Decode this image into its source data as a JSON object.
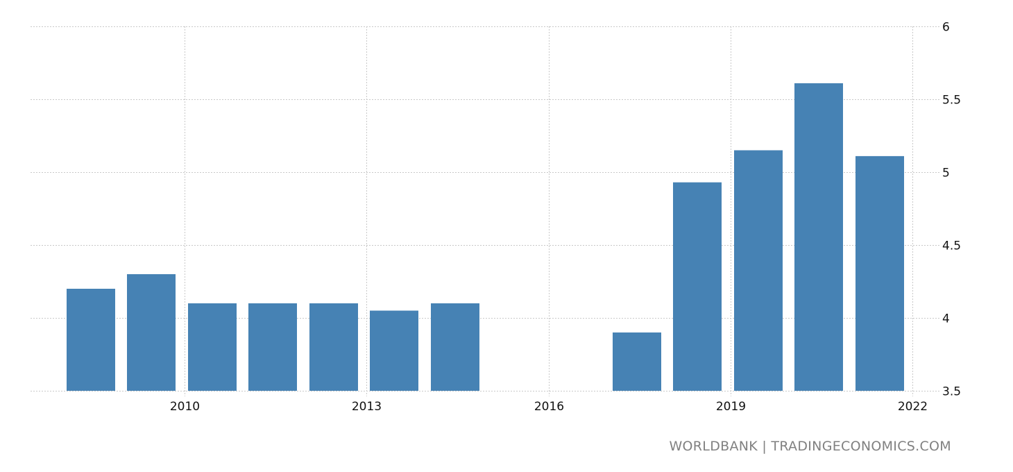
{
  "chart_data": {
    "type": "bar",
    "title": "",
    "xlabel": "",
    "ylabel": "",
    "categories": [
      "2008",
      "2009",
      "2010",
      "2011",
      "2012",
      "2013",
      "2014",
      "2015",
      "2016",
      "2017",
      "2018",
      "2019",
      "2020",
      "2021"
    ],
    "values": [
      4.2,
      4.3,
      4.1,
      4.1,
      4.1,
      4.05,
      4.1,
      null,
      null,
      3.9,
      4.93,
      5.15,
      5.61,
      5.11
    ],
    "ylim": [
      3.5,
      6
    ],
    "yticks": [
      "3.5",
      "4",
      "4.5",
      "5",
      "5.5",
      "6"
    ],
    "xticks": [
      "2010",
      "2013",
      "2016",
      "2019",
      "2022"
    ],
    "y_axis_position": "right",
    "grid": true,
    "bar_color": "#4682b4",
    "legend": null
  },
  "footer": {
    "source": "WORLDBANK | TRADINGECONOMICS.COM"
  }
}
